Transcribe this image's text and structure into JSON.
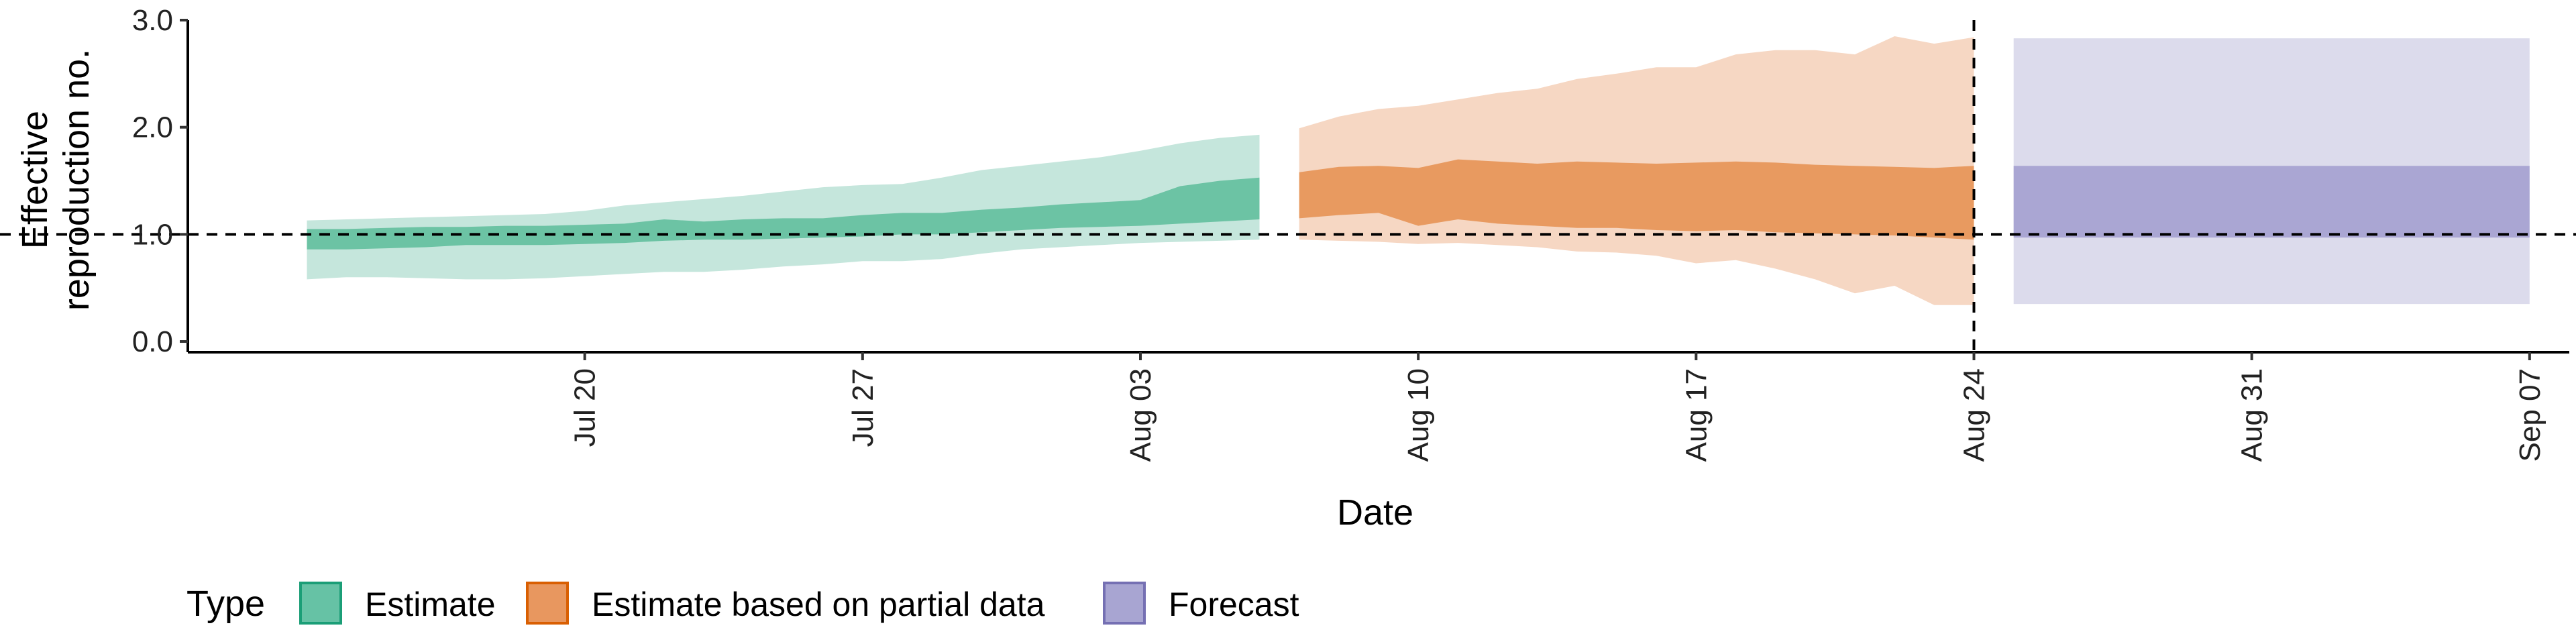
{
  "chart_data": {
    "type": "area",
    "xlabel": "Date",
    "ylabel_lines": [
      "Effective",
      "reproduction no."
    ],
    "y_ticks": [
      0.0,
      1.0,
      2.0,
      3.0
    ],
    "y_tick_labels": [
      "0.0",
      "1.0",
      "2.0",
      "3.0"
    ],
    "ylim": [
      -0.1,
      3.0
    ],
    "xlim": [
      "2020-07-10",
      "2020-09-08"
    ],
    "x_ticks": [
      "2020-07-20",
      "2020-07-27",
      "2020-08-03",
      "2020-08-10",
      "2020-08-17",
      "2020-08-24",
      "2020-08-31",
      "2020-09-07"
    ],
    "x_tick_labels": [
      "Jul 20",
      "Jul 27",
      "Aug 03",
      "Aug 10",
      "Aug 17",
      "Aug 24",
      "Aug 31",
      "Sep 07"
    ],
    "reference_line_y": 1.0,
    "reference_line_x": "2020-08-24",
    "legend": {
      "title": "Type",
      "position": "bottom",
      "entries": [
        {
          "label": "Estimate",
          "fill": "#66c2a5",
          "border": "#1b9e77"
        },
        {
          "label": "Estimate based on partial data",
          "fill": "#e8975f",
          "border": "#d95f02"
        },
        {
          "label": "Forecast",
          "fill": "#a8a5d2",
          "border": "#7570b3"
        }
      ]
    },
    "series": [
      {
        "name": "Estimate",
        "outer_color": "#c5e6dc",
        "inner_color": "#6cc3a4",
        "x": [
          "2020-07-13",
          "2020-07-14",
          "2020-07-15",
          "2020-07-16",
          "2020-07-17",
          "2020-07-18",
          "2020-07-19",
          "2020-07-20",
          "2020-07-21",
          "2020-07-22",
          "2020-07-23",
          "2020-07-24",
          "2020-07-25",
          "2020-07-26",
          "2020-07-27",
          "2020-07-28",
          "2020-07-29",
          "2020-07-30",
          "2020-07-31",
          "2020-08-01",
          "2020-08-02",
          "2020-08-03",
          "2020-08-04",
          "2020-08-05",
          "2020-08-06"
        ],
        "lower_90": [
          0.58,
          0.6,
          0.6,
          0.59,
          0.58,
          0.58,
          0.59,
          0.61,
          0.63,
          0.65,
          0.65,
          0.67,
          0.7,
          0.72,
          0.75,
          0.75,
          0.77,
          0.82,
          0.86,
          0.88,
          0.9,
          0.92,
          0.93,
          0.94,
          0.95
        ],
        "lower_50": [
          0.86,
          0.86,
          0.87,
          0.88,
          0.9,
          0.9,
          0.9,
          0.91,
          0.92,
          0.94,
          0.95,
          0.95,
          0.96,
          0.97,
          0.98,
          1.0,
          1.0,
          1.02,
          1.04,
          1.06,
          1.07,
          1.08,
          1.1,
          1.12,
          1.14
        ],
        "upper_50": [
          1.05,
          1.05,
          1.06,
          1.07,
          1.07,
          1.08,
          1.08,
          1.09,
          1.1,
          1.14,
          1.12,
          1.14,
          1.15,
          1.15,
          1.18,
          1.2,
          1.2,
          1.23,
          1.25,
          1.28,
          1.3,
          1.32,
          1.45,
          1.5,
          1.53
        ],
        "upper_90": [
          1.13,
          1.14,
          1.15,
          1.16,
          1.17,
          1.18,
          1.19,
          1.22,
          1.27,
          1.3,
          1.33,
          1.36,
          1.4,
          1.44,
          1.46,
          1.47,
          1.53,
          1.6,
          1.64,
          1.68,
          1.72,
          1.78,
          1.85,
          1.9,
          1.93
        ]
      },
      {
        "name": "Estimate based on partial data",
        "outer_color": "#f6d7c3",
        "inner_color": "#e89a60",
        "x": [
          "2020-08-07",
          "2020-08-08",
          "2020-08-09",
          "2020-08-10",
          "2020-08-11",
          "2020-08-12",
          "2020-08-13",
          "2020-08-14",
          "2020-08-15",
          "2020-08-16",
          "2020-08-17",
          "2020-08-18",
          "2020-08-19",
          "2020-08-20",
          "2020-08-21",
          "2020-08-22",
          "2020-08-23",
          "2020-08-24"
        ],
        "lower_90": [
          0.95,
          0.94,
          0.93,
          0.91,
          0.92,
          0.9,
          0.88,
          0.84,
          0.83,
          0.8,
          0.73,
          0.76,
          0.68,
          0.58,
          0.45,
          0.52,
          0.34,
          0.34
        ],
        "lower_50": [
          1.15,
          1.18,
          1.2,
          1.08,
          1.14,
          1.1,
          1.08,
          1.06,
          1.06,
          1.04,
          1.03,
          1.04,
          1.02,
          1.01,
          1.0,
          0.99,
          0.97,
          0.95
        ],
        "upper_50": [
          1.58,
          1.63,
          1.64,
          1.62,
          1.7,
          1.68,
          1.66,
          1.68,
          1.67,
          1.66,
          1.67,
          1.68,
          1.67,
          1.65,
          1.64,
          1.63,
          1.62,
          1.64
        ],
        "upper_90": [
          1.99,
          2.1,
          2.17,
          2.2,
          2.26,
          2.32,
          2.36,
          2.45,
          2.5,
          2.56,
          2.56,
          2.68,
          2.72,
          2.72,
          2.68,
          2.85,
          2.78,
          2.84
        ]
      },
      {
        "name": "Forecast",
        "outer_color": "#dcdbec",
        "inner_color": "#aaa6d3",
        "x": [
          "2020-08-25",
          "2020-09-07"
        ],
        "lower_90": [
          0.35,
          0.35
        ],
        "lower_50": [
          0.97,
          0.97
        ],
        "upper_50": [
          1.64,
          1.64
        ],
        "upper_90": [
          2.83,
          2.83
        ]
      }
    ]
  }
}
